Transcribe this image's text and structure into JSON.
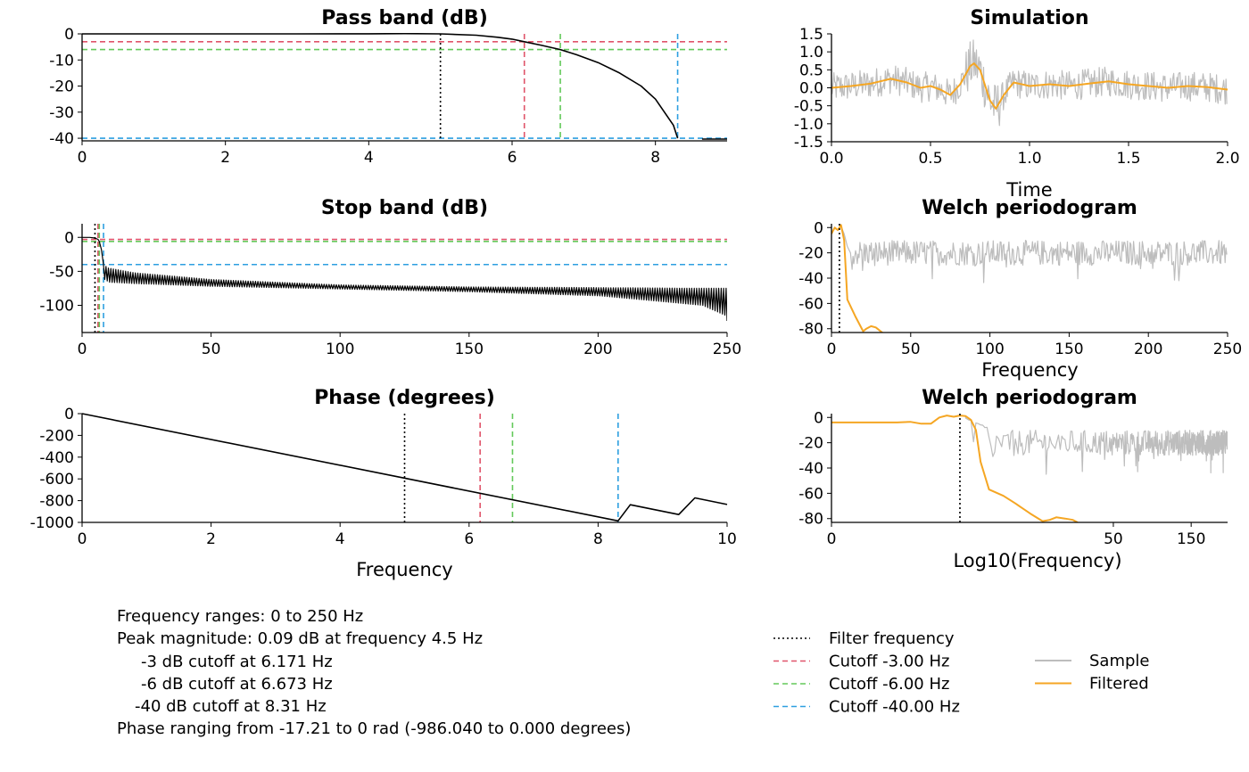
{
  "colors": {
    "filter": "#000000",
    "cut3": "#e0546a",
    "cut6": "#63c95a",
    "cut40": "#2d9fe0",
    "sample": "#bdbdbd",
    "filtered": "#f5a623",
    "curve": "#000000"
  },
  "chart_data": [
    {
      "id": "passband",
      "type": "line",
      "title": "Pass band (dB)",
      "xlabel": "",
      "ylabel": "",
      "xlim": [
        0,
        9
      ],
      "ylim": [
        -41,
        0
      ],
      "xticks": [
        0,
        2,
        4,
        6,
        8
      ],
      "yticks": [
        0,
        -10,
        -20,
        -30,
        -40
      ],
      "x": [
        0,
        1,
        2,
        3,
        4,
        4.5,
        5,
        5.5,
        5.8,
        6.0,
        6.171,
        6.4,
        6.673,
        6.9,
        7.2,
        7.5,
        7.8,
        8.0,
        8.25,
        8.31
      ],
      "y": [
        0,
        0,
        0,
        0,
        0.05,
        0.09,
        0,
        -0.5,
        -1.3,
        -2.0,
        -3.0,
        -4.3,
        -6.0,
        -8.0,
        -11.0,
        -15.0,
        -20.0,
        -25.0,
        -35.0,
        -40.0
      ],
      "vlines": [
        5,
        6.171,
        6.673,
        8.31
      ],
      "hlines": [
        -3,
        -6,
        -40
      ]
    },
    {
      "id": "stopband",
      "type": "line",
      "title": "Stop band (dB)",
      "xlabel": "",
      "ylabel": "",
      "xlim": [
        0,
        250
      ],
      "ylim": [
        -140,
        20
      ],
      "xticks": [
        0,
        50,
        100,
        150,
        200,
        250
      ],
      "yticks": [
        0,
        -50,
        -100
      ],
      "vlines": [
        5,
        6.171,
        6.673,
        8.31
      ],
      "hlines": [
        -3,
        -6,
        -40
      ],
      "envelope": {
        "x": [
          8.31,
          10,
          20,
          50,
          100,
          150,
          200,
          240,
          249,
          250
        ],
        "peak": [
          -40,
          -45,
          -52,
          -62,
          -70,
          -73,
          -74,
          -75,
          -75,
          -75
        ],
        "trough": [
          -62,
          -66,
          -68,
          -72,
          -76,
          -80,
          -86,
          -100,
          -115,
          -128
        ]
      }
    },
    {
      "id": "phase",
      "type": "line",
      "title": "Phase (degrees)",
      "xlabel": "Frequency",
      "ylabel": "",
      "xlim": [
        0,
        10
      ],
      "ylim": [
        -1000,
        0
      ],
      "xticks": [
        0,
        2,
        4,
        6,
        8,
        10
      ],
      "yticks": [
        0,
        -200,
        -400,
        -600,
        -800,
        -1000
      ],
      "x": [
        0,
        8.31,
        8.5,
        9.25,
        9.5,
        10
      ],
      "y": [
        0,
        -986.04,
        -838,
        -928,
        -775,
        -835
      ],
      "vlines": [
        5,
        6.171,
        6.673,
        8.31
      ]
    },
    {
      "id": "simulation",
      "type": "line",
      "title": "Simulation",
      "xlabel": "Time",
      "ylabel": "",
      "xlim": [
        0,
        2
      ],
      "ylim": [
        -1.5,
        1.5
      ],
      "xticks": [
        "0.0",
        "0.5",
        "1.0",
        "1.5",
        "2.0"
      ],
      "yticks": [
        "1.5",
        "1.0",
        "0.5",
        "0.0",
        "-0.5",
        "-1.0",
        "-1.5"
      ],
      "series": [
        {
          "name": "Sample",
          "type": "noise",
          "amplitude": 0.42
        },
        {
          "name": "Filtered",
          "x": [
            0,
            0.1,
            0.2,
            0.3,
            0.38,
            0.45,
            0.5,
            0.55,
            0.6,
            0.65,
            0.7,
            0.72,
            0.75,
            0.8,
            0.83,
            0.87,
            0.92,
            1.0,
            1.1,
            1.2,
            1.3,
            1.4,
            1.5,
            1.6,
            1.7,
            1.8,
            1.9,
            2.0
          ],
          "y": [
            0.0,
            0.05,
            0.12,
            0.25,
            0.15,
            0.0,
            0.05,
            -0.05,
            -0.2,
            0.1,
            0.6,
            0.68,
            0.5,
            -0.35,
            -0.58,
            -0.2,
            0.15,
            0.05,
            0.1,
            0.05,
            0.12,
            0.18,
            0.1,
            0.05,
            0.0,
            0.05,
            0.02,
            -0.05
          ]
        }
      ]
    },
    {
      "id": "welch1",
      "type": "line",
      "title": "Welch periodogram",
      "xlabel": "Frequency",
      "ylabel": "",
      "xlim": [
        0,
        250
      ],
      "ylim": [
        -83,
        3
      ],
      "xticks": [
        0,
        50,
        100,
        150,
        200,
        250
      ],
      "yticks": [
        0,
        -20,
        -40,
        -60,
        -80
      ],
      "vlines": [
        5
      ],
      "series": [
        {
          "name": "Sample",
          "type": "noise",
          "base": -20,
          "amplitude": 10
        },
        {
          "name": "Filtered",
          "x": [
            0,
            2,
            4,
            6,
            8,
            10,
            15,
            20,
            22,
            25,
            28,
            30,
            33
          ],
          "y": [
            -5,
            0,
            -2,
            2,
            -10,
            -57,
            -70,
            -82,
            -80,
            -78,
            -79,
            -81,
            -84
          ]
        }
      ]
    },
    {
      "id": "welch2",
      "type": "line",
      "title": "Welch periodogram",
      "xlabel": "Log10(Frequency)",
      "ylabel": "",
      "xscale": "log",
      "xlim": [
        0,
        250
      ],
      "xticks": [
        "0",
        "50",
        "150"
      ],
      "yticks": [
        0,
        -20,
        -40,
        -60,
        -80
      ],
      "ylim": [
        -83,
        3
      ],
      "vlines": [
        5
      ],
      "series": [
        {
          "name": "Sample",
          "type": "noise",
          "base": -20,
          "amplitude": 10
        },
        {
          "name": "Filtered",
          "x": [
            1,
            1.5,
            2,
            2.5,
            3,
            3.5,
            4,
            4.5,
            5,
            5.5,
            6,
            6.5,
            7,
            8,
            10,
            12,
            15,
            18,
            20,
            22,
            25,
            28,
            30
          ],
          "y": [
            -4,
            -4,
            -3.5,
            -5,
            -5,
            0,
            1.5,
            0.5,
            1.5,
            1,
            -2,
            -10,
            -35,
            -57,
            -62,
            -68,
            -76,
            -82,
            -81,
            -79,
            -80,
            -81,
            -83
          ]
        }
      ]
    }
  ],
  "legend": {
    "lines": [
      {
        "label": "Filter frequency",
        "key": "filter"
      },
      {
        "label": "Cutoff -3.00 Hz",
        "key": "cut3"
      },
      {
        "label": "Cutoff -6.00 Hz",
        "key": "cut6"
      },
      {
        "label": "Cutoff -40.00 Hz",
        "key": "cut40"
      }
    ],
    "series": [
      {
        "label": "Sample",
        "key": "sample"
      },
      {
        "label": "Filtered",
        "key": "filtered"
      }
    ]
  },
  "info": {
    "lines": [
      "Frequency ranges: 0 to 250 Hz",
      "Peak magnitude: 0.09 dB at frequency 4.5 Hz",
      "-3 dB cutoff at 6.171 Hz",
      "-6 dB cutoff at 6.673 Hz",
      "-40 dB cutoff at 8.31 Hz",
      "Phase ranging from -17.21 to 0 rad (-986.040 to 0.000 degrees)"
    ]
  }
}
